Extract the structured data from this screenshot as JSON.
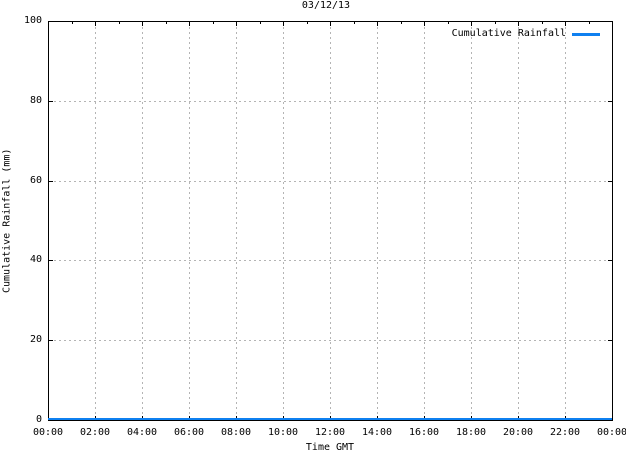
{
  "chart_data": {
    "type": "line",
    "title": "03/12/13",
    "xlabel": "Time GMT",
    "ylabel": "Cumulative Rainfall (mm)",
    "x_tick_labels": [
      "00:00",
      "02:00",
      "04:00",
      "06:00",
      "08:00",
      "10:00",
      "12:00",
      "14:00",
      "16:00",
      "18:00",
      "20:00",
      "22:00",
      "00:00"
    ],
    "x_minor_ticks_per_interval": 1,
    "y_ticks": [
      0,
      20,
      40,
      60,
      80,
      100
    ],
    "ylim": [
      0,
      100
    ],
    "grid": "dotted-both-axes",
    "legend_position": "top-right-inside",
    "series": [
      {
        "name": "Cumulative Rainfall",
        "color": "#0f80f0",
        "values": [
          0,
          0,
          0,
          0,
          0,
          0,
          0,
          0,
          0,
          0,
          0,
          0,
          0
        ]
      }
    ],
    "colors": {
      "axis": "#000000",
      "grid": "#b4b4b4",
      "text": "#000000",
      "background": "#ffffff"
    }
  }
}
